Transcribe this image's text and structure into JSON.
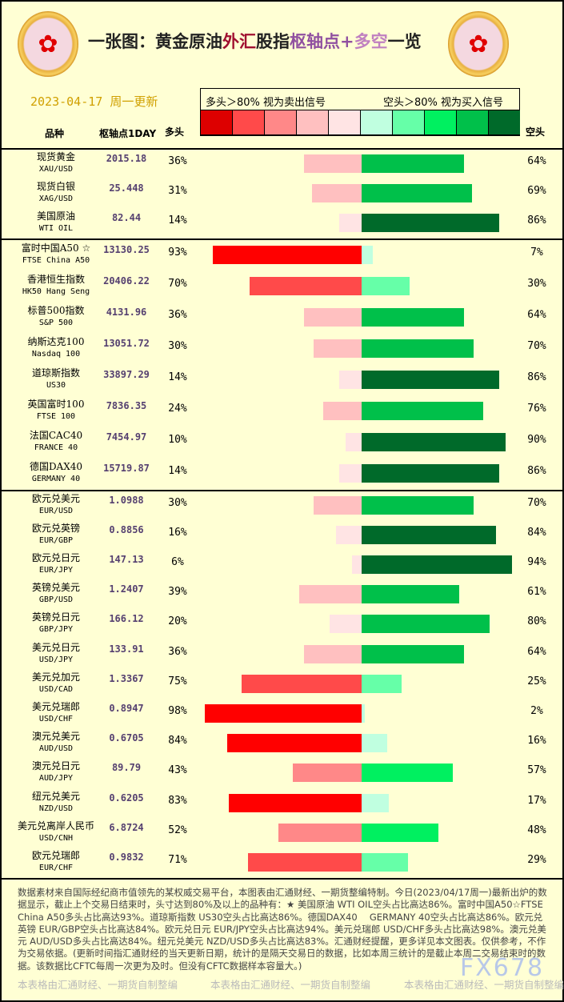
{
  "header": {
    "title_parts": [
      "一张图：黄金原油",
      "外汇",
      "股指",
      "枢轴点+",
      "多空",
      "一览"
    ],
    "date": "2023-04-17",
    "update": "周一更新",
    "legend_long": "多头＞80%  视为卖出信号",
    "legend_short": "空头＞80%  视为买入信号",
    "col_name": "品种",
    "col_pivot": "枢轴点1DAY",
    "col_long": "多头",
    "col_short": "空头",
    "swatch_colors": [
      "#DD0000",
      "#FF4A4A",
      "#FF8888",
      "#FFC0C0",
      "#FFE4E4",
      "#C0FFE0",
      "#66FFA8",
      "#00F060",
      "#00C04A",
      "#006A2A"
    ]
  },
  "sections": [
    [
      {
        "cn": "现货黄金",
        "en": "XAU/USD",
        "pivot": "2015.18",
        "long": 36,
        "short": 64
      },
      {
        "cn": "现货白银",
        "en": "XAG/USD",
        "pivot": "25.448",
        "long": 31,
        "short": 69
      },
      {
        "cn": "美国原油",
        "en": "WTI OIL",
        "pivot": "82.44",
        "long": 14,
        "short": 86
      }
    ],
    [
      {
        "cn": "富时中国A50 ☆",
        "en": "FTSE China A50",
        "pivot": "13130.25",
        "long": 93,
        "short": 7
      },
      {
        "cn": "香港恒生指数",
        "en": "HK50 Hang Seng",
        "pivot": "20406.22",
        "long": 70,
        "short": 30
      },
      {
        "cn": "标普500指数",
        "en": "S&P 500",
        "pivot": "4131.96",
        "long": 36,
        "short": 64
      },
      {
        "cn": "纳斯达克100",
        "en": "Nasdaq 100",
        "pivot": "13051.72",
        "long": 30,
        "short": 70
      },
      {
        "cn": "道琼斯指数",
        "en": "US30",
        "pivot": "33897.29",
        "long": 14,
        "short": 86
      },
      {
        "cn": "英国富时100",
        "en": "FTSE 100",
        "pivot": "7836.35",
        "long": 24,
        "short": 76
      },
      {
        "cn": "法国CAC40",
        "en": "FRANCE 40",
        "pivot": "7454.97",
        "long": 10,
        "short": 90
      },
      {
        "cn": "德国DAX40",
        "en": "GERMANY 40",
        "pivot": "15719.87",
        "long": 14,
        "short": 86
      }
    ],
    [
      {
        "cn": "欧元兑美元",
        "en": "EUR/USD",
        "pivot": "1.0988",
        "long": 30,
        "short": 70
      },
      {
        "cn": "欧元兑英镑",
        "en": "EUR/GBP",
        "pivot": "0.8856",
        "long": 16,
        "short": 84
      },
      {
        "cn": "欧元兑日元",
        "en": "EUR/JPY",
        "pivot": "147.13",
        "long": 6,
        "short": 94
      },
      {
        "cn": "英镑兑美元",
        "en": "GBP/USD",
        "pivot": "1.2407",
        "long": 39,
        "short": 61
      },
      {
        "cn": "英镑兑日元",
        "en": "GBP/JPY",
        "pivot": "166.12",
        "long": 20,
        "short": 80
      },
      {
        "cn": "美元兑日元",
        "en": "USD/JPY",
        "pivot": "133.91",
        "long": 36,
        "short": 64
      },
      {
        "cn": "美元兑加元",
        "en": "USD/CAD",
        "pivot": "1.3367",
        "long": 75,
        "short": 25
      },
      {
        "cn": "美元兑瑞郎",
        "en": "USD/CHF",
        "pivot": "0.8947",
        "long": 98,
        "short": 2
      },
      {
        "cn": "澳元兑美元",
        "en": "AUD/USD",
        "pivot": "0.6705",
        "long": 84,
        "short": 16
      },
      {
        "cn": "澳元兑日元",
        "en": "AUD/JPY",
        "pivot": "89.79",
        "long": 43,
        "short": 57
      },
      {
        "cn": "纽元兑美元",
        "en": "NZD/USD",
        "pivot": "0.6205",
        "long": 83,
        "short": 17
      },
      {
        "cn": "美元兑离岸人民币",
        "en": "USD/CNH",
        "pivot": "6.8724",
        "long": 52,
        "short": 48
      },
      {
        "cn": "欧元兑瑞郎",
        "en": "EUR/CHF",
        "pivot": "0.9832",
        "long": 71,
        "short": 29
      }
    ]
  ],
  "footer": {
    "text": "数据素材来自国际经纪商市值领先的某权威交易平台，本图表由汇通财经、一期货整编特制。今日(2023/04/17周一)最新出炉的数据显示，截止上个交易日结束时，头寸达到80%及以上的品种有：★ 美国原油 WTI OIL空头占比高达86%。富时中国A50☆FTSE China A50多头占比高达93%。道琼斯指数 US30空头占比高达86%。德国DAX40　 GERMANY 40空头占比高达86%。欧元兑英镑 EUR/GBP空头占比高达84%。欧元兑日元 EUR/JPY空头占比高达94%。美元兑瑞郎 USD/CHF多头占比高达98%。澳元兑美元 AUD/USD多头占比高达84%。纽元兑美元 NZD/USD多头占比高达83%。汇通财经提醒，更多详见本文图表。仅供参考，不作为交易依据。(更新时间指汇通财经的当天更新日期，统计的是隔天交易日的数据，比如本周三统计的是截止本周二交易结束时的数据。该数据比CFTC每周一次更为及时。但没有CFTC数据样本容量大。)",
    "credit": "本表格由汇通财经、一期货自制整编",
    "watermark": "FX678"
  }
}
